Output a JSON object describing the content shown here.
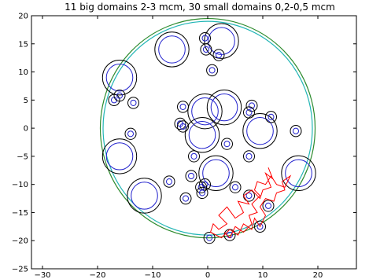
{
  "chart_data": {
    "type": "scatter",
    "title": "11 big domains 2-3 mcm, 30 small domains 0,2-0,5 mcm",
    "xlabel": "",
    "ylabel": "",
    "xlim": [
      -32,
      27
    ],
    "ylim": [
      -25,
      20
    ],
    "grid": false,
    "x_ticks": [
      -30,
      -20,
      -10,
      0,
      10,
      20
    ],
    "y_ticks": [
      -25,
      -20,
      -15,
      -10,
      -5,
      0,
      5,
      10,
      15,
      20
    ],
    "x_tick_labels": [
      "−30",
      "−20",
      "−10",
      "0",
      "10",
      "20"
    ],
    "y_tick_labels": [
      "−25",
      "−20",
      "−15",
      "−10",
      "−5",
      "0",
      "5",
      "10",
      "15",
      "20"
    ],
    "colors": {
      "outer_boundary": "#2e8b2e",
      "inner_boundary": "#21b5b5",
      "outer_ring": "#000000",
      "inner_ring": "#1f1fcc",
      "path": "#ff0000"
    },
    "boundary": {
      "center": [
        0,
        0
      ],
      "outer_radius": 19.5,
      "inner_radius": 19.0
    },
    "big_domains": [
      {
        "x": -16.0,
        "y": 9.0,
        "r_outer": 3.1,
        "r_inner": 2.4
      },
      {
        "x": -6.5,
        "y": 14.0,
        "r_outer": 3.1,
        "r_inner": 2.4
      },
      {
        "x": 2.5,
        "y": 15.5,
        "r_outer": 3.1,
        "r_inner": 2.4
      },
      {
        "x": 3.0,
        "y": 3.7,
        "r_outer": 3.1,
        "r_inner": 2.4
      },
      {
        "x": -0.5,
        "y": 3.0,
        "r_outer": 3.1,
        "r_inner": 2.4
      },
      {
        "x": -1.0,
        "y": -1.2,
        "r_outer": 3.1,
        "r_inner": 2.4
      },
      {
        "x": 9.5,
        "y": -0.5,
        "r_outer": 3.1,
        "r_inner": 2.4
      },
      {
        "x": -16.0,
        "y": -5.0,
        "r_outer": 3.1,
        "r_inner": 2.4
      },
      {
        "x": 1.5,
        "y": -8.0,
        "r_outer": 3.1,
        "r_inner": 2.4
      },
      {
        "x": -11.5,
        "y": -12.0,
        "r_outer": 3.1,
        "r_inner": 2.4
      },
      {
        "x": 16.5,
        "y": -8.0,
        "r_outer": 3.1,
        "r_inner": 2.4
      }
    ],
    "small_domains": [
      {
        "x": -0.5,
        "y": 16.0,
        "r_outer": 1.0,
        "r_inner": 0.5
      },
      {
        "x": -0.3,
        "y": 14.0,
        "r_outer": 1.0,
        "r_inner": 0.5
      },
      {
        "x": 2.0,
        "y": 13.0,
        "r_outer": 1.0,
        "r_inner": 0.5
      },
      {
        "x": 0.8,
        "y": 10.3,
        "r_outer": 1.0,
        "r_inner": 0.5
      },
      {
        "x": -17.0,
        "y": 5.0,
        "r_outer": 1.0,
        "r_inner": 0.5
      },
      {
        "x": -16.0,
        "y": 5.8,
        "r_outer": 1.0,
        "r_inner": 0.5
      },
      {
        "x": -13.5,
        "y": 4.5,
        "r_outer": 1.0,
        "r_inner": 0.5
      },
      {
        "x": -4.5,
        "y": 3.8,
        "r_outer": 1.0,
        "r_inner": 0.5
      },
      {
        "x": 8.0,
        "y": 4.0,
        "r_outer": 1.0,
        "r_inner": 0.5
      },
      {
        "x": 7.5,
        "y": 2.8,
        "r_outer": 1.0,
        "r_inner": 0.5
      },
      {
        "x": 11.5,
        "y": 2.0,
        "r_outer": 1.0,
        "r_inner": 0.5
      },
      {
        "x": -5.0,
        "y": 0.8,
        "r_outer": 1.0,
        "r_inner": 0.5
      },
      {
        "x": -4.5,
        "y": 0.3,
        "r_outer": 1.0,
        "r_inner": 0.5
      },
      {
        "x": -14.0,
        "y": -1.0,
        "r_outer": 1.0,
        "r_inner": 0.5
      },
      {
        "x": 16.0,
        "y": -0.5,
        "r_outer": 1.0,
        "r_inner": 0.5
      },
      {
        "x": 3.5,
        "y": -2.8,
        "r_outer": 1.0,
        "r_inner": 0.5
      },
      {
        "x": -2.5,
        "y": -5.0,
        "r_outer": 1.0,
        "r_inner": 0.5
      },
      {
        "x": 7.5,
        "y": -5.0,
        "r_outer": 1.0,
        "r_inner": 0.5
      },
      {
        "x": -3.0,
        "y": -8.5,
        "r_outer": 1.0,
        "r_inner": 0.5
      },
      {
        "x": -7.0,
        "y": -9.5,
        "r_outer": 1.0,
        "r_inner": 0.5
      },
      {
        "x": -0.5,
        "y": -10.0,
        "r_outer": 1.0,
        "r_inner": 0.5
      },
      {
        "x": -1.2,
        "y": -10.5,
        "r_outer": 1.0,
        "r_inner": 0.5
      },
      {
        "x": -1.0,
        "y": -11.5,
        "r_outer": 1.0,
        "r_inner": 0.5
      },
      {
        "x": 5.0,
        "y": -10.5,
        "r_outer": 1.0,
        "r_inner": 0.5
      },
      {
        "x": -4.0,
        "y": -12.5,
        "r_outer": 1.0,
        "r_inner": 0.5
      },
      {
        "x": 7.5,
        "y": -12.0,
        "r_outer": 1.0,
        "r_inner": 0.5
      },
      {
        "x": 11.0,
        "y": -13.8,
        "r_outer": 1.0,
        "r_inner": 0.5
      },
      {
        "x": 9.5,
        "y": -17.5,
        "r_outer": 1.0,
        "r_inner": 0.5
      },
      {
        "x": 0.3,
        "y": -19.5,
        "r_outer": 1.0,
        "r_inner": 0.5
      },
      {
        "x": 4.0,
        "y": -19.0,
        "r_outer": 1.0,
        "r_inner": 0.5
      }
    ],
    "path": [
      [
        11.0,
        -7.0
      ],
      [
        11.8,
        -9.0
      ],
      [
        10.5,
        -8.0
      ],
      [
        11.5,
        -10.5
      ],
      [
        10.0,
        -11.0
      ],
      [
        9.5,
        -12.5
      ],
      [
        8.0,
        -11.0
      ],
      [
        6.5,
        -12.0
      ],
      [
        7.5,
        -13.5
      ],
      [
        5.5,
        -13.0
      ],
      [
        6.5,
        -15.0
      ],
      [
        5.0,
        -16.0
      ],
      [
        3.5,
        -14.0
      ],
      [
        2.0,
        -15.5
      ],
      [
        3.5,
        -17.0
      ],
      [
        2.0,
        -18.0
      ],
      [
        1.0,
        -17.0
      ],
      [
        0.5,
        -18.5
      ],
      [
        2.5,
        -19.5
      ],
      [
        4.0,
        -18.0
      ],
      [
        5.5,
        -19.0
      ],
      [
        6.5,
        -17.0
      ],
      [
        8.0,
        -18.0
      ],
      [
        8.5,
        -16.0
      ],
      [
        9.5,
        -17.5
      ],
      [
        10.5,
        -15.5
      ],
      [
        9.5,
        -14.0
      ],
      [
        10.5,
        -12.5
      ],
      [
        12.0,
        -13.0
      ],
      [
        12.5,
        -11.5
      ],
      [
        14.0,
        -11.0
      ],
      [
        13.5,
        -9.5
      ],
      [
        15.0,
        -8.5
      ],
      [
        14.0,
        -10.5
      ],
      [
        12.5,
        -10.0
      ],
      [
        11.5,
        -8.5
      ],
      [
        10.5,
        -10.0
      ],
      [
        9.0,
        -9.5
      ],
      [
        8.5,
        -11.0
      ],
      [
        9.5,
        -12.0
      ],
      [
        8.0,
        -13.5
      ],
      [
        9.0,
        -15.0
      ],
      [
        7.5,
        -15.5
      ],
      [
        8.0,
        -17.0
      ],
      [
        6.5,
        -18.5
      ],
      [
        5.0,
        -17.5
      ],
      [
        4.0,
        -19.5
      ],
      [
        3.0,
        -18.5
      ]
    ]
  }
}
